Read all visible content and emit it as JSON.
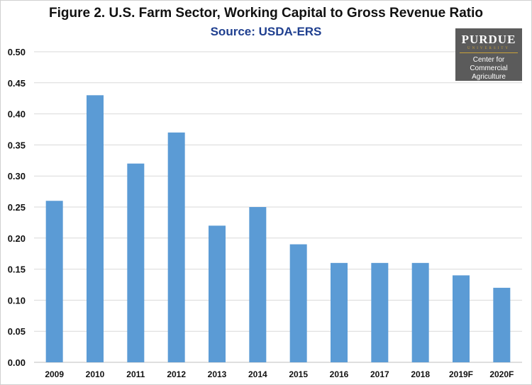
{
  "colors": {
    "bar": "#5b9bd5",
    "grid": "#d9d9d9",
    "subtitle": "#1f3f8f",
    "logo_gold": "#c9a23a"
  },
  "logo": {
    "name": "PURDUE",
    "university": "UNIVERSITY",
    "line1": "Center for",
    "line2": "Commercial Agriculture"
  },
  "chart_data": {
    "type": "bar",
    "title": "Figure 2.  U.S. Farm Sector, Working Capital to Gross Revenue Ratio",
    "subtitle": "Source: USDA-ERS",
    "xlabel": "",
    "ylabel": "",
    "categories": [
      "2009",
      "2010",
      "2011",
      "2012",
      "2013",
      "2014",
      "2015",
      "2016",
      "2017",
      "2018",
      "2019F",
      "2020F"
    ],
    "values": [
      0.26,
      0.43,
      0.32,
      0.37,
      0.22,
      0.25,
      0.19,
      0.16,
      0.16,
      0.16,
      0.14,
      0.12
    ],
    "ylim": [
      0,
      0.5
    ],
    "yticks": [
      "0.00",
      "0.05",
      "0.10",
      "0.15",
      "0.20",
      "0.25",
      "0.30",
      "0.35",
      "0.40",
      "0.45",
      "0.50"
    ],
    "grid": true,
    "legend": "none"
  }
}
